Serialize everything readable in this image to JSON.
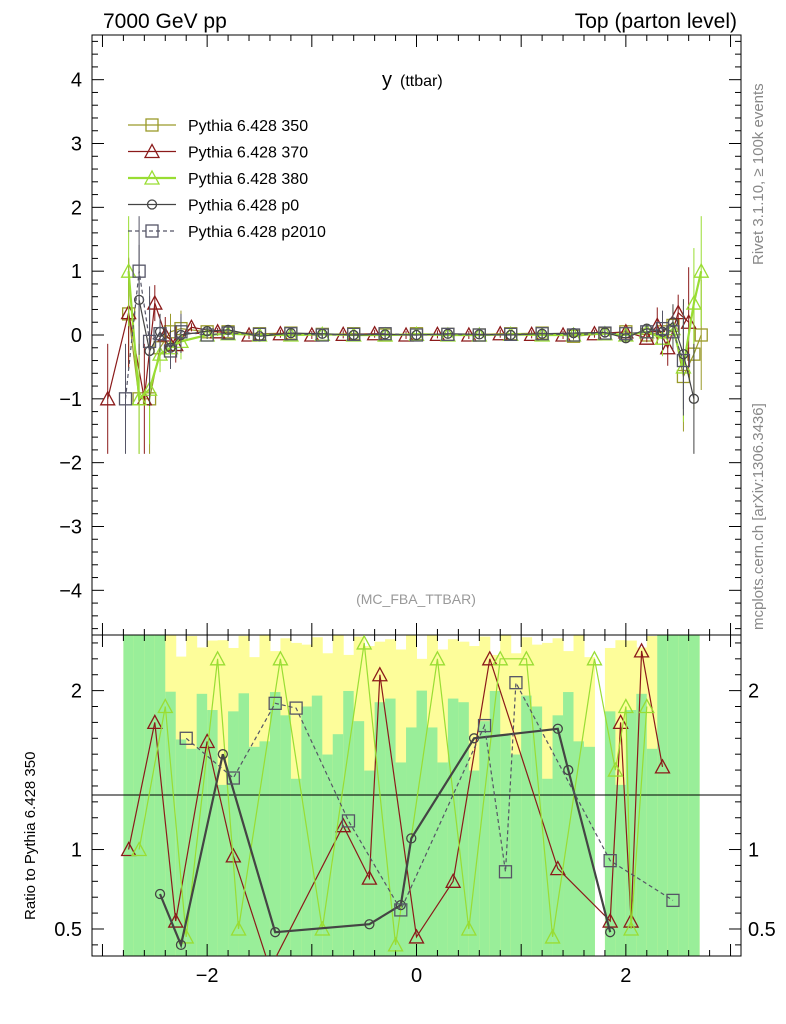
{
  "header": {
    "left": "7000 GeV pp",
    "right": "Top (parton level)"
  },
  "side_labels": {
    "rivet": "Rivet 3.1.10, ≥ 100k events",
    "source": "mcplots.cern.ch [arXiv:1306.3436]"
  },
  "colors": {
    "p350": "#9a9a2a",
    "p370": "#8b1a1a",
    "p380": "#99dd33",
    "p0": "#444444",
    "p2010": "#555566",
    "band_yellow": "#fdfd9a",
    "band_green": "#99ee99"
  },
  "chart_data": [
    {
      "type": "line",
      "title": "y (ttbar)",
      "title_main": "y",
      "title_sub": "(ttbar)",
      "analysis": "(MC_FBA_TTBAR)",
      "xlim": [
        -3.1,
        3.1
      ],
      "ylim": [
        -4.7,
        4.7
      ],
      "x_ticks": [
        -2,
        0,
        2
      ],
      "y_ticks": [
        -4,
        -3,
        -2,
        -1,
        0,
        1,
        2,
        3,
        4
      ],
      "legend_position": "top-left",
      "series": [
        {
          "name": "Pythia 6.428 350",
          "marker": "square",
          "color": "#9a9a2a",
          "dash": false,
          "x": [
            -2.75,
            -2.65,
            -2.55,
            -2.45,
            -2.35,
            -2.25,
            -2.0,
            -1.8,
            -1.5,
            -1.2,
            -0.9,
            -0.6,
            -0.3,
            0.0,
            0.3,
            0.6,
            0.9,
            1.2,
            1.5,
            1.8,
            2.0,
            2.2,
            2.35,
            2.45,
            2.55,
            2.65,
            2.72
          ],
          "y": [
            0.33,
            -1.0,
            -1.0,
            -0.2,
            0.05,
            0.1,
            0.05,
            0.05,
            0.02,
            0.03,
            0.01,
            0.02,
            0.0,
            0.02,
            0.01,
            0.0,
            0.02,
            0.03,
            -0.02,
            0.02,
            0.05,
            0.0,
            0.05,
            0.15,
            -0.65,
            -0.3,
            0.0
          ]
        },
        {
          "name": "Pythia 6.428 370",
          "marker": "triangle",
          "color": "#8b1a1a",
          "dash": false,
          "x": [
            -2.95,
            -2.75,
            -2.6,
            -2.5,
            -2.4,
            -2.3,
            -2.15,
            -1.9,
            -1.6,
            -1.3,
            -1.0,
            -0.7,
            -0.4,
            -0.1,
            0.2,
            0.5,
            0.8,
            1.1,
            1.4,
            1.7,
            2.0,
            2.2,
            2.3,
            2.4,
            2.5,
            2.6
          ],
          "y": [
            -1.0,
            0.35,
            -1.0,
            0.5,
            0.0,
            -0.15,
            0.12,
            0.05,
            0.0,
            0.02,
            0.0,
            0.01,
            0.02,
            0.0,
            0.01,
            0.0,
            0.02,
            0.01,
            0.0,
            0.02,
            0.05,
            -0.05,
            0.15,
            -0.2,
            0.35,
            0.2
          ]
        },
        {
          "name": "Pythia 6.428 380",
          "marker": "triangle",
          "color": "#99dd33",
          "dash": false,
          "x": [
            -2.75,
            -2.65,
            -2.55,
            -2.45,
            -2.35,
            -2.25,
            -2.0,
            -1.8,
            -1.5,
            -1.2,
            -0.9,
            -0.6,
            -0.3,
            0.0,
            0.3,
            0.6,
            0.9,
            1.2,
            1.5,
            1.8,
            2.0,
            2.2,
            2.35,
            2.45,
            2.55,
            2.65,
            2.72
          ],
          "y": [
            1.0,
            -1.0,
            -0.85,
            -0.3,
            -0.2,
            -0.1,
            0.0,
            0.02,
            0.0,
            0.0,
            0.01,
            0.0,
            0.0,
            0.01,
            0.0,
            0.0,
            0.01,
            0.0,
            0.0,
            0.02,
            0.0,
            0.05,
            -0.05,
            0.1,
            -0.5,
            0.5,
            1.0
          ]
        },
        {
          "name": "Pythia 6.428 p0",
          "marker": "circle",
          "color": "#444444",
          "dash": false,
          "x": [
            -2.65,
            -2.55,
            -2.45,
            -2.35,
            -2.25,
            -2.0,
            -1.8,
            -1.5,
            -1.2,
            -0.9,
            -0.6,
            -0.3,
            0.0,
            0.3,
            0.6,
            0.9,
            1.2,
            1.5,
            1.8,
            2.0,
            2.2,
            2.35,
            2.45,
            2.55,
            2.65
          ],
          "y": [
            0.55,
            -0.25,
            0.05,
            -0.2,
            0.0,
            0.06,
            0.08,
            -0.02,
            0.03,
            0.02,
            0.0,
            0.01,
            0.0,
            0.02,
            0.01,
            0.0,
            0.02,
            0.03,
            0.04,
            -0.05,
            0.1,
            0.05,
            0.2,
            -0.3,
            -1.0
          ]
        },
        {
          "name": "Pythia 6.428 p2010",
          "marker": "square",
          "color": "#555566",
          "dash": true,
          "x": [
            -2.78,
            -2.65,
            -2.55,
            -2.45,
            -2.35,
            -2.25,
            -2.0,
            -1.8,
            -1.5,
            -1.2,
            -0.9,
            -0.6,
            -0.3,
            0.0,
            0.3,
            0.6,
            0.9,
            1.2,
            1.5,
            1.8,
            2.0,
            2.2,
            2.35,
            2.45,
            2.55
          ],
          "y": [
            -1.0,
            1.0,
            -0.1,
            0.02,
            -0.25,
            0.05,
            0.0,
            0.03,
            0.01,
            0.02,
            0.0,
            0.01,
            0.02,
            0.0,
            0.01,
            0.0,
            0.01,
            0.02,
            0.0,
            0.03,
            0.02,
            0.05,
            0.1,
            0.05,
            -0.4
          ]
        }
      ]
    },
    {
      "type": "line",
      "title": "",
      "ylabel": "Ratio to Pythia 6.428 350",
      "xlim": [
        -3.1,
        3.1
      ],
      "ylim": [
        0.33,
        2.35
      ],
      "x_ticks": [
        -2,
        0,
        2
      ],
      "x_tick_labels": [
        "−2",
        "0",
        "2"
      ],
      "y_ticks": [
        0.5,
        1,
        2
      ],
      "y_tick_labels": [
        "0.5",
        "1",
        "2"
      ],
      "reference_line": 1,
      "series": [
        {
          "name": "Pythia 6.428 370",
          "marker": "triangle",
          "color": "#8b1a1a",
          "dash": false,
          "x": [
            -2.75,
            -2.5,
            -2.3,
            -2.0,
            -1.75,
            -1.4,
            -0.7,
            -0.45,
            -0.35,
            0.0,
            0.35,
            0.7,
            1.35,
            1.85,
            1.95,
            2.05,
            2.15,
            2.35
          ],
          "y": [
            1.0,
            1.8,
            0.55,
            1.68,
            0.96,
            0.25,
            1.15,
            0.82,
            2.1,
            0.45,
            0.8,
            2.2,
            0.88,
            0.55,
            1.8,
            0.55,
            2.25,
            1.52
          ]
        },
        {
          "name": "Pythia 6.428 380",
          "marker": "triangle",
          "color": "#99dd33",
          "dash": false,
          "x": [
            -2.65,
            -2.4,
            -2.2,
            -1.9,
            -1.7,
            -1.3,
            -0.9,
            -0.5,
            -0.2,
            0.2,
            0.5,
            0.8,
            1.05,
            1.3,
            1.7,
            1.9,
            2.0,
            2.05,
            2.2
          ],
          "y": [
            1.0,
            1.9,
            0.45,
            2.2,
            0.5,
            2.2,
            0.5,
            2.3,
            0.4,
            2.2,
            0.5,
            2.2,
            2.2,
            0.45,
            2.2,
            1.5,
            1.9,
            0.5,
            1.9
          ]
        },
        {
          "name": "Pythia 6.428 p0",
          "marker": "circle",
          "color": "#444444",
          "dash": false,
          "x": [
            -2.45,
            -2.25,
            -1.85,
            -1.35,
            -0.45,
            -0.15,
            -0.05,
            0.55,
            1.35,
            1.45,
            1.85
          ],
          "y": [
            0.72,
            0.4,
            1.6,
            0.48,
            0.53,
            0.65,
            1.07,
            1.7,
            1.76,
            1.5,
            0.48
          ]
        },
        {
          "name": "Pythia 6.428 p2010",
          "marker": "square",
          "color": "#555566",
          "dash": true,
          "x": [
            -2.2,
            -1.75,
            -1.35,
            -1.15,
            -0.65,
            -0.15,
            0.65,
            0.85,
            0.95,
            1.85,
            2.45
          ],
          "y": [
            1.7,
            1.45,
            1.92,
            1.89,
            1.18,
            0.62,
            1.78,
            0.86,
            2.05,
            0.93,
            0.68
          ]
        }
      ]
    }
  ]
}
